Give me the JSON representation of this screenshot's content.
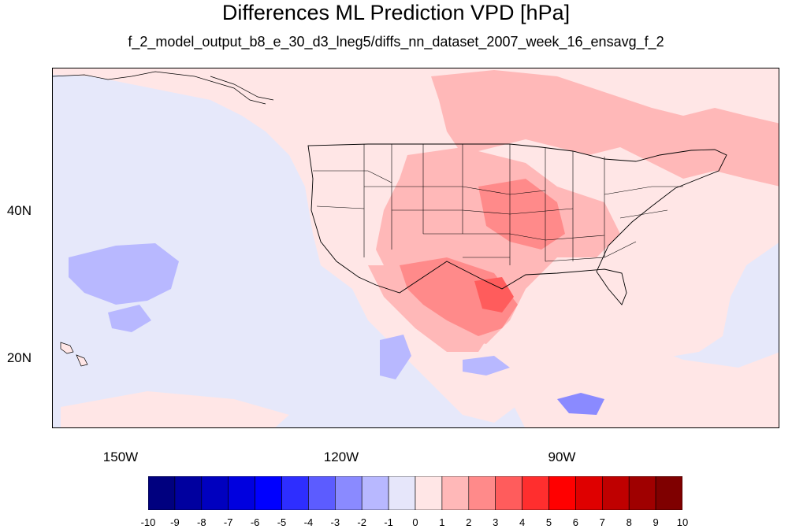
{
  "title": "Differences ML Prediction VPD [hPa]",
  "subtitle": "f_2_model_output_b8_e_30_d3_lneg5/diffs_nn_dataset_2007_week_16_ensavg_f_2",
  "map": {
    "lat_labels": [
      "40N",
      "20N"
    ],
    "lon_labels": [
      "150W",
      "120W",
      "90W"
    ],
    "background_color": "#e6e8fa"
  },
  "colorbar": {
    "labels": [
      "-10",
      "-9",
      "-8",
      "-7",
      "-6",
      "-5",
      "-4",
      "-3",
      "-2",
      "-1",
      "0",
      "1",
      "2",
      "3",
      "4",
      "5",
      "6",
      "7",
      "8",
      "9",
      "10"
    ],
    "colors": [
      "#00007f",
      "#00009f",
      "#0000bf",
      "#0000df",
      "#0000ff",
      "#2e2eff",
      "#5c5cff",
      "#8a8aff",
      "#b8b8ff",
      "#e6e6fa",
      "#ffe6e6",
      "#ffb8b8",
      "#ff8a8a",
      "#ff5c5c",
      "#ff2e2e",
      "#ff0000",
      "#df0000",
      "#bf0000",
      "#9f0000",
      "#7f0000"
    ]
  }
}
